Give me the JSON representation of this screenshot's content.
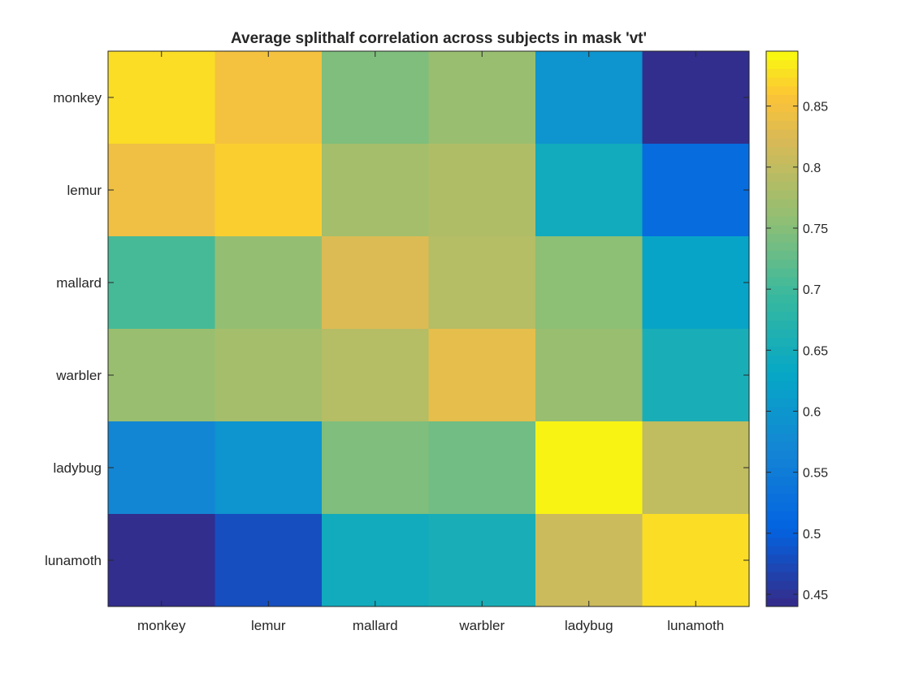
{
  "chart_data": {
    "type": "heatmap",
    "title": "Average splithalf correlation across subjects in mask 'vt'",
    "xlabel": "",
    "ylabel": "",
    "x_categories": [
      "monkey",
      "lemur",
      "mallard",
      "warbler",
      "ladybug",
      "lunamoth"
    ],
    "y_categories": [
      "monkey",
      "lemur",
      "mallard",
      "warbler",
      "ladybug",
      "lunamoth"
    ],
    "values": [
      [
        0.875,
        0.85,
        0.745,
        0.765,
        0.595,
        0.445
      ],
      [
        0.845,
        0.865,
        0.775,
        0.785,
        0.645,
        0.52
      ],
      [
        0.705,
        0.76,
        0.825,
        0.79,
        0.755,
        0.625
      ],
      [
        0.765,
        0.775,
        0.79,
        0.835,
        0.765,
        0.655
      ],
      [
        0.57,
        0.595,
        0.745,
        0.735,
        0.89,
        0.8
      ],
      [
        0.445,
        0.48,
        0.645,
        0.655,
        0.81,
        0.875
      ]
    ],
    "colormap": "parula",
    "clim": [
      0.44,
      0.895
    ],
    "colorbar": {
      "ticks": [
        0.45,
        0.5,
        0.55,
        0.6,
        0.65,
        0.7,
        0.75,
        0.8,
        0.85
      ],
      "tick_labels": [
        "0.45",
        "0.5",
        "0.55",
        "0.6",
        "0.65",
        "0.7",
        "0.75",
        "0.8",
        "0.85"
      ],
      "placement": "right"
    },
    "grid": false
  }
}
